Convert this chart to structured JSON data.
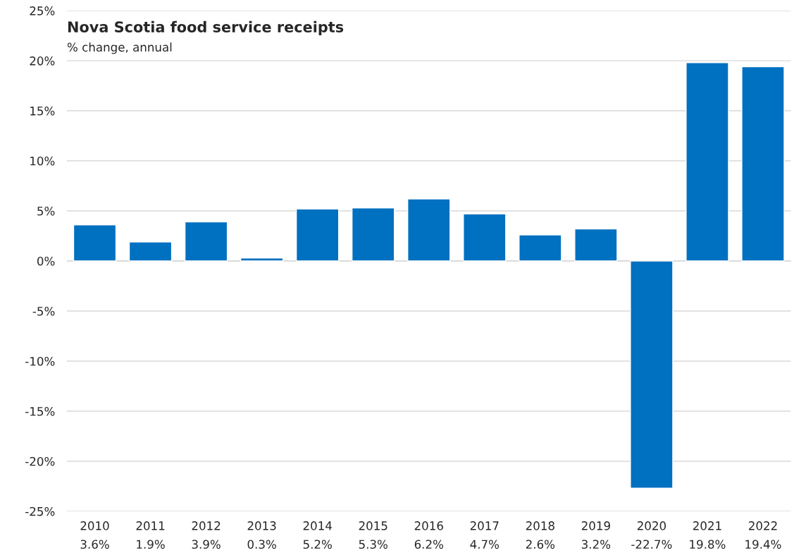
{
  "chart_data": {
    "type": "bar",
    "title": "Nova Scotia food service receipts",
    "subtitle": "% change, annual",
    "categories": [
      "2010",
      "2011",
      "2012",
      "2013",
      "2014",
      "2015",
      "2016",
      "2017",
      "2018",
      "2019",
      "2020",
      "2021",
      "2022"
    ],
    "values": [
      3.6,
      1.9,
      3.9,
      0.3,
      5.2,
      5.3,
      6.2,
      4.7,
      2.6,
      3.2,
      -22.7,
      19.8,
      19.4
    ],
    "value_labels": [
      "3.6%",
      "1.9%",
      "3.9%",
      "0.3%",
      "5.2%",
      "5.3%",
      "6.2%",
      "4.7%",
      "2.6%",
      "3.2%",
      "-22.7%",
      "19.8%",
      "19.4%"
    ],
    "color": "#0070c0",
    "ylim": [
      -25,
      25
    ],
    "yticks": [
      {
        "value": -25,
        "label": "-25%"
      },
      {
        "value": -20,
        "label": "-20%"
      },
      {
        "value": -15,
        "label": "-15%"
      },
      {
        "value": -10,
        "label": "-10%"
      },
      {
        "value": -5,
        "label": "-5%"
      },
      {
        "value": 0,
        "label": "0%"
      },
      {
        "value": 5,
        "label": "5%"
      },
      {
        "value": 10,
        "label": "10%"
      },
      {
        "value": 15,
        "label": "15%"
      },
      {
        "value": 20,
        "label": "20%"
      },
      {
        "value": 25,
        "label": "25%"
      }
    ],
    "grid": "y",
    "legend": false
  }
}
